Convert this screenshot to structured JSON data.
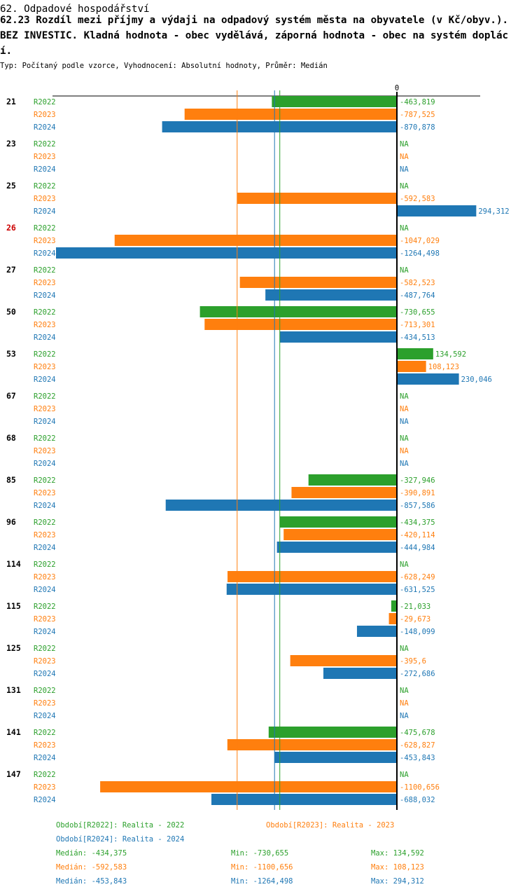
{
  "header": {
    "title": "62. Odpadové hospodářství",
    "subtitle": "62.23 Rozdíl mezi příjmy a výdaji na odpadový systém města na obyvatele (v Kč/obyv.). BEZ INVESTIC. Kladná hodnota - obec vydělává, záporná hodnota - obec na systém doplácí.",
    "meta": "Typ: Počítaný podle vzorce, Vyhodnocení: Absolutní hodnoty, Průměr: Medián"
  },
  "colors": {
    "R2022": "#2ca02c",
    "R2023": "#ff7f0e",
    "R2024": "#1f77b4",
    "highlight": "#cc0000"
  },
  "chart_data": {
    "type": "bar",
    "orientation": "horizontal",
    "zero_label": "0",
    "na_label": "NA",
    "xlim": [
      -1264.498,
      294.312
    ],
    "series_names": [
      "R2022",
      "R2023",
      "R2024"
    ],
    "medians": {
      "R2022": -434.375,
      "R2023": -592.583,
      "R2024": -453.843
    },
    "groups": [
      {
        "id": "21",
        "highlight": false,
        "rows": [
          {
            "series": "R2022",
            "value": -463.819,
            "label": "-463,819"
          },
          {
            "series": "R2023",
            "value": -787.525,
            "label": "-787,525"
          },
          {
            "series": "R2024",
            "value": -870.878,
            "label": "-870,878"
          }
        ]
      },
      {
        "id": "23",
        "highlight": false,
        "rows": [
          {
            "series": "R2022",
            "value": null,
            "label": "NA"
          },
          {
            "series": "R2023",
            "value": null,
            "label": "NA"
          },
          {
            "series": "R2024",
            "value": null,
            "label": "NA"
          }
        ]
      },
      {
        "id": "25",
        "highlight": false,
        "rows": [
          {
            "series": "R2022",
            "value": null,
            "label": "NA"
          },
          {
            "series": "R2023",
            "value": -592.583,
            "label": "-592,583"
          },
          {
            "series": "R2024",
            "value": 294.312,
            "label": "294,312"
          }
        ]
      },
      {
        "id": "26",
        "highlight": true,
        "rows": [
          {
            "series": "R2022",
            "value": null,
            "label": "NA"
          },
          {
            "series": "R2023",
            "value": -1047.029,
            "label": "-1047,029"
          },
          {
            "series": "R2024",
            "value": -1264.498,
            "label": "-1264,498"
          }
        ]
      },
      {
        "id": "27",
        "highlight": false,
        "rows": [
          {
            "series": "R2022",
            "value": null,
            "label": "NA"
          },
          {
            "series": "R2023",
            "value": -582.523,
            "label": "-582,523"
          },
          {
            "series": "R2024",
            "value": -487.764,
            "label": "-487,764"
          }
        ]
      },
      {
        "id": "50",
        "highlight": false,
        "rows": [
          {
            "series": "R2022",
            "value": -730.655,
            "label": "-730,655"
          },
          {
            "series": "R2023",
            "value": -713.301,
            "label": "-713,301"
          },
          {
            "series": "R2024",
            "value": -434.513,
            "label": "-434,513"
          }
        ]
      },
      {
        "id": "53",
        "highlight": false,
        "rows": [
          {
            "series": "R2022",
            "value": 134.592,
            "label": "134,592"
          },
          {
            "series": "R2023",
            "value": 108.123,
            "label": "108,123"
          },
          {
            "series": "R2024",
            "value": 230.046,
            "label": "230,046"
          }
        ]
      },
      {
        "id": "67",
        "highlight": false,
        "rows": [
          {
            "series": "R2022",
            "value": null,
            "label": "NA"
          },
          {
            "series": "R2023",
            "value": null,
            "label": "NA"
          },
          {
            "series": "R2024",
            "value": null,
            "label": "NA"
          }
        ]
      },
      {
        "id": "68",
        "highlight": false,
        "rows": [
          {
            "series": "R2022",
            "value": null,
            "label": "NA"
          },
          {
            "series": "R2023",
            "value": null,
            "label": "NA"
          },
          {
            "series": "R2024",
            "value": null,
            "label": "NA"
          }
        ]
      },
      {
        "id": "85",
        "highlight": false,
        "rows": [
          {
            "series": "R2022",
            "value": -327.946,
            "label": "-327,946"
          },
          {
            "series": "R2023",
            "value": -390.891,
            "label": "-390,891"
          },
          {
            "series": "R2024",
            "value": -857.586,
            "label": "-857,586"
          }
        ]
      },
      {
        "id": "96",
        "highlight": false,
        "rows": [
          {
            "series": "R2022",
            "value": -434.375,
            "label": "-434,375"
          },
          {
            "series": "R2023",
            "value": -420.114,
            "label": "-420,114"
          },
          {
            "series": "R2024",
            "value": -444.984,
            "label": "-444,984"
          }
        ]
      },
      {
        "id": "114",
        "highlight": false,
        "rows": [
          {
            "series": "R2022",
            "value": null,
            "label": "NA"
          },
          {
            "series": "R2023",
            "value": -628.249,
            "label": "-628,249"
          },
          {
            "series": "R2024",
            "value": -631.525,
            "label": "-631,525"
          }
        ]
      },
      {
        "id": "115",
        "highlight": false,
        "rows": [
          {
            "series": "R2022",
            "value": -21.033,
            "label": "-21,033"
          },
          {
            "series": "R2023",
            "value": -29.673,
            "label": "-29,673"
          },
          {
            "series": "R2024",
            "value": -148.099,
            "label": "-148,099"
          }
        ]
      },
      {
        "id": "125",
        "highlight": false,
        "rows": [
          {
            "series": "R2022",
            "value": null,
            "label": "NA"
          },
          {
            "series": "R2023",
            "value": -395.6,
            "label": "-395,6"
          },
          {
            "series": "R2024",
            "value": -272.686,
            "label": "-272,686"
          }
        ]
      },
      {
        "id": "131",
        "highlight": false,
        "rows": [
          {
            "series": "R2022",
            "value": null,
            "label": "NA"
          },
          {
            "series": "R2023",
            "value": null,
            "label": "NA"
          },
          {
            "series": "R2024",
            "value": null,
            "label": "NA"
          }
        ]
      },
      {
        "id": "141",
        "highlight": false,
        "rows": [
          {
            "series": "R2022",
            "value": -475.678,
            "label": "-475,678"
          },
          {
            "series": "R2023",
            "value": -628.827,
            "label": "-628,827"
          },
          {
            "series": "R2024",
            "value": -453.843,
            "label": "-453,843"
          }
        ]
      },
      {
        "id": "147",
        "highlight": false,
        "rows": [
          {
            "series": "R2022",
            "value": null,
            "label": "NA"
          },
          {
            "series": "R2023",
            "value": -1100.656,
            "label": "-1100,656"
          },
          {
            "series": "R2024",
            "value": -688.032,
            "label": "-688,032"
          }
        ]
      }
    ]
  },
  "legend": {
    "r2022": "Období[R2022]: Realita - 2022",
    "r2023": "Období[R2023]: Realita - 2023",
    "r2024": "Období[R2024]: Realita - 2024",
    "stats": [
      {
        "series": "R2022",
        "median": "Medián: -434,375",
        "min": "Min: -730,655",
        "max": "Max: 134,592"
      },
      {
        "series": "R2023",
        "median": "Medián: -592,583",
        "min": "Min: -1100,656",
        "max": "Max: 108,123"
      },
      {
        "series": "R2024",
        "median": "Medián: -453,843",
        "min": "Min: -1264,498",
        "max": "Max: 294,312"
      }
    ]
  }
}
